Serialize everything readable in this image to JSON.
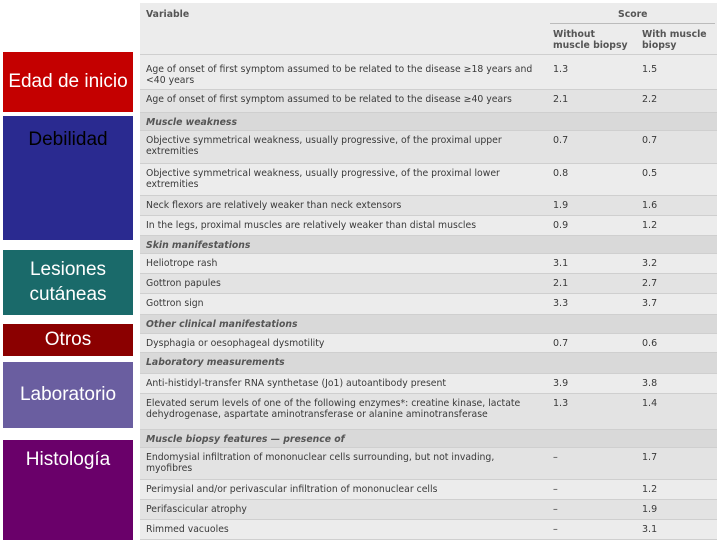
{
  "categories": [
    "Edad de inicio",
    "Debilidad",
    "Lesiones cutáneas",
    "Otros",
    "Laboratorio",
    "Histología"
  ],
  "table": {
    "header": {
      "variable": "Variable",
      "score": "Score",
      "col1": "Without muscle biopsy",
      "col2": "With muscle biopsy"
    },
    "rows": [
      {
        "v": "Age of onset of first symptom assumed to be related to the disease ≥18 years and <40 years",
        "a": "1.3",
        "b": "1.5"
      },
      {
        "v": "Age of onset of first symptom assumed to be related to the disease ≥40 years",
        "a": "2.1",
        "b": "2.2"
      },
      {
        "section": "Muscle weakness"
      },
      {
        "v": "Objective symmetrical weakness, usually progressive, of the proximal upper extremities",
        "a": "0.7",
        "b": "0.7"
      },
      {
        "v": "Objective symmetrical weakness, usually progressive, of the proximal lower extremities",
        "a": "0.8",
        "b": "0.5"
      },
      {
        "v": "Neck flexors are relatively weaker than neck extensors",
        "a": "1.9",
        "b": "1.6"
      },
      {
        "v": "In the legs, proximal muscles are relatively weaker than distal muscles",
        "a": "0.9",
        "b": "1.2"
      },
      {
        "section": "Skin manifestations"
      },
      {
        "v": "Heliotrope rash",
        "a": "3.1",
        "b": "3.2"
      },
      {
        "v": "Gottron papules",
        "a": "2.1",
        "b": "2.7"
      },
      {
        "v": "Gottron sign",
        "a": "3.3",
        "b": "3.7"
      },
      {
        "section": "Other clinical manifestations"
      },
      {
        "v": "Dysphagia or oesophageal dysmotility",
        "a": "0.7",
        "b": "0.6"
      },
      {
        "section": "Laboratory measurements"
      },
      {
        "v": "Anti-histidyl-transfer RNA synthetase (Jo1) autoantibody present",
        "a": "3.9",
        "b": "3.8"
      },
      {
        "v": "Elevated serum levels of one of the following enzymes*: creatine kinase, lactate dehydrogenase, aspartate aminotransferase or alanine aminotransferase",
        "a": "1.3",
        "b": "1.4"
      },
      {
        "section": "Muscle biopsy features — presence of"
      },
      {
        "v": "Endomysial infiltration of mononuclear cells surrounding, but not invading, myofibres",
        "a": "–",
        "b": "1.7"
      },
      {
        "v": "Perimysial and/or perivascular infiltration of mononuclear cells",
        "a": "–",
        "b": "1.2"
      },
      {
        "v": "Perifascicular atrophy",
        "a": "–",
        "b": "1.9"
      },
      {
        "v": "Rimmed vacuoles",
        "a": "–",
        "b": "3.1"
      }
    ]
  }
}
